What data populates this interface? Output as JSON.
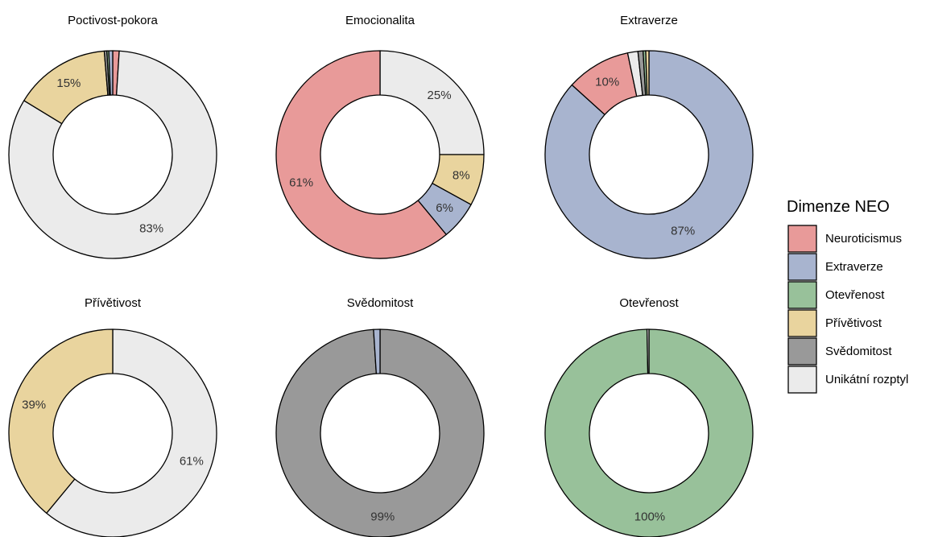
{
  "legend": {
    "title": "Dimenze NEO",
    "items": [
      {
        "label": "Neuroticismus",
        "color": "#E89A99"
      },
      {
        "label": "Extraverze",
        "color": "#A8B4CF"
      },
      {
        "label": "Otevřenost",
        "color": "#98C19A"
      },
      {
        "label": "Přívětivost",
        "color": "#E9D49E"
      },
      {
        "label": "Svědomitost",
        "color": "#999999"
      },
      {
        "label": "Unikátní rozptyl",
        "color": "#EBEBEB"
      }
    ]
  },
  "chart_data": [
    {
      "type": "pie",
      "subtype": "donut",
      "title": "Poctivost-pokora",
      "slices": [
        {
          "category": "Neuroticismus",
          "value": 1.0,
          "label": ""
        },
        {
          "category": "Unikátní rozptyl",
          "value": 82.7,
          "label": "83%"
        },
        {
          "category": "Přívětivost",
          "value": 15.0,
          "label": "15%"
        },
        {
          "category": "Svědomitost",
          "value": 0.4,
          "label": ""
        },
        {
          "category": "Otevřenost",
          "value": 0.3,
          "label": ""
        },
        {
          "category": "Extraverze",
          "value": 0.6,
          "label": ""
        }
      ]
    },
    {
      "type": "pie",
      "subtype": "donut",
      "title": "Emocionalita",
      "slices": [
        {
          "category": "Unikátní rozptyl",
          "value": 25.0,
          "label": "25%"
        },
        {
          "category": "Přívětivost",
          "value": 8.0,
          "label": "8%"
        },
        {
          "category": "Extraverze",
          "value": 6.0,
          "label": "6%"
        },
        {
          "category": "Neuroticismus",
          "value": 61.0,
          "label": "61%"
        }
      ]
    },
    {
      "type": "pie",
      "subtype": "donut",
      "title": "Extraverze",
      "slices": [
        {
          "category": "Extraverze",
          "value": 86.7,
          "label": "87%"
        },
        {
          "category": "Neuroticismus",
          "value": 10.0,
          "label": "10%"
        },
        {
          "category": "Unikátní rozptyl",
          "value": 1.6,
          "label": ""
        },
        {
          "category": "Svědomitost",
          "value": 0.8,
          "label": ""
        },
        {
          "category": "Otevřenost",
          "value": 0.4,
          "label": ""
        },
        {
          "category": "Přívětivost",
          "value": 0.5,
          "label": ""
        }
      ]
    },
    {
      "type": "pie",
      "subtype": "donut",
      "title": "Přívětivost",
      "slices": [
        {
          "category": "Unikátní rozptyl",
          "value": 61.0,
          "label": "61%"
        },
        {
          "category": "Přívětivost",
          "value": 39.0,
          "label": "39%"
        }
      ]
    },
    {
      "type": "pie",
      "subtype": "donut",
      "title": "Svědomitost",
      "slices": [
        {
          "category": "Svědomitost",
          "value": 99.0,
          "label": "99%"
        },
        {
          "category": "Extraverze",
          "value": 1.0,
          "label": ""
        }
      ]
    },
    {
      "type": "pie",
      "subtype": "donut",
      "title": "Otevřenost",
      "slices": [
        {
          "category": "Otevřenost",
          "value": 99.7,
          "label": "100%"
        },
        {
          "category": "Unikátní rozptyl",
          "value": 0.3,
          "label": ""
        }
      ]
    }
  ]
}
